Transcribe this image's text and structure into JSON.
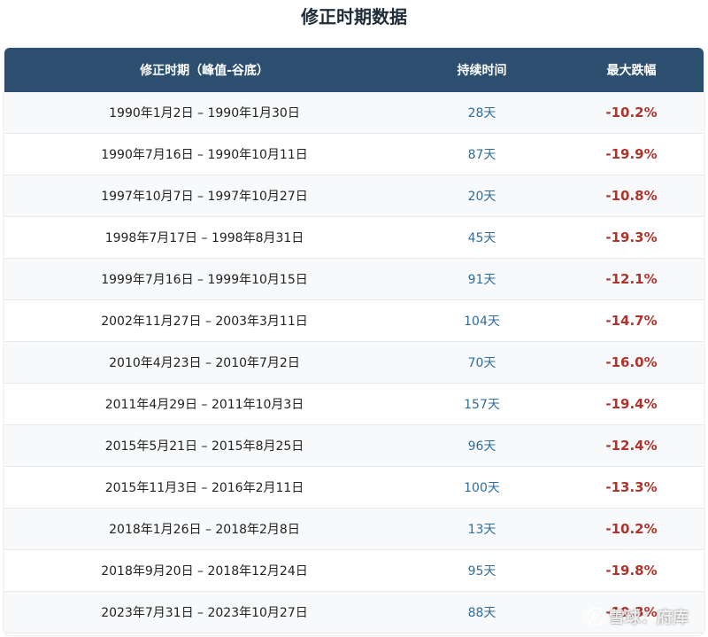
{
  "title": "修正时期数据",
  "table": {
    "headers": [
      "修正时期（峰值-谷底）",
      "持续时间",
      "最大跌幅"
    ],
    "rows": [
      {
        "period": "1990年1月2日 – 1990年1月30日",
        "duration": "28天",
        "drawdown": "-10.2%"
      },
      {
        "period": "1990年7月16日 – 1990年10月11日",
        "duration": "87天",
        "drawdown": "-19.9%"
      },
      {
        "period": "1997年10月7日 – 1997年10月27日",
        "duration": "20天",
        "drawdown": "-10.8%"
      },
      {
        "period": "1998年7月17日 – 1998年8月31日",
        "duration": "45天",
        "drawdown": "-19.3%"
      },
      {
        "period": "1999年7月16日 – 1999年10月15日",
        "duration": "91天",
        "drawdown": "-12.1%"
      },
      {
        "period": "2002年11月27日 – 2003年3月11日",
        "duration": "104天",
        "drawdown": "-14.7%"
      },
      {
        "period": "2010年4月23日 – 2010年7月2日",
        "duration": "70天",
        "drawdown": "-16.0%"
      },
      {
        "period": "2011年4月29日 – 2011年10月3日",
        "duration": "157天",
        "drawdown": "-19.4%"
      },
      {
        "period": "2015年5月21日 – 2015年8月25日",
        "duration": "96天",
        "drawdown": "-12.4%"
      },
      {
        "period": "2015年11月3日 – 2016年2月11日",
        "duration": "100天",
        "drawdown": "-13.3%"
      },
      {
        "period": "2018年1月26日 – 2018年2月8日",
        "duration": "13天",
        "drawdown": "-10.2%"
      },
      {
        "period": "2018年9月20日 – 2018年12月24日",
        "duration": "95天",
        "drawdown": "-19.8%"
      },
      {
        "period": "2023年7月31日 – 2023年10月27日",
        "duration": "88天",
        "drawdown": "-10.3%"
      }
    ]
  },
  "watermark": {
    "text": "雪球：府库",
    "icon": "xueqiu-logo-icon"
  },
  "colors": {
    "header_bg": "#2c4f6f",
    "duration_text": "#2f6d9e",
    "drawdown_text": "#b0342b"
  }
}
